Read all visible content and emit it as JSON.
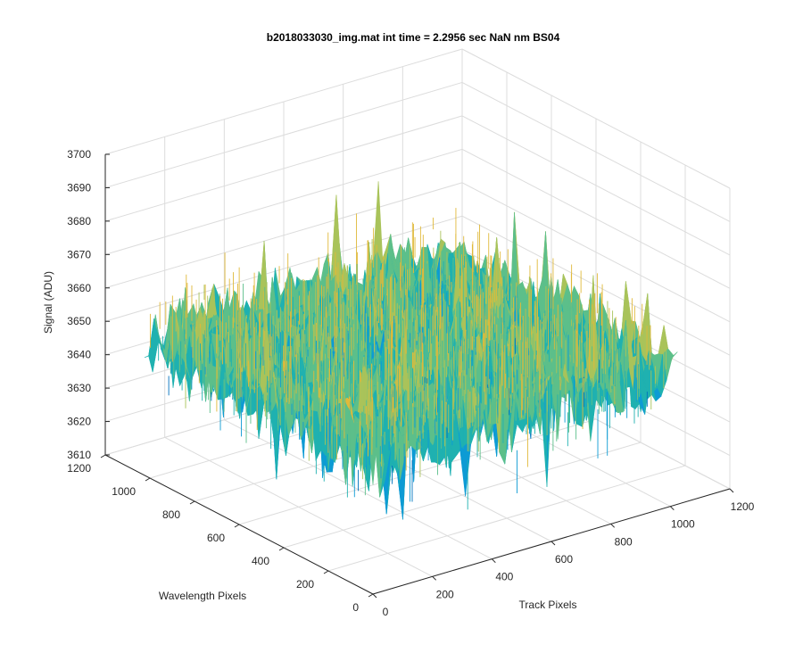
{
  "window": {
    "title": "b2018033030_img.mat int time = 2.2956 sec  NaN nm BS04"
  },
  "chart_data": {
    "type": "surface",
    "title": "b2018033030_img.mat int time = 2.2956 sec  NaN nm BS04",
    "xlabel": "Track Pixels",
    "ylabel": "Wavelength Pixels",
    "zlabel": "Signal (ADU)",
    "xlim": [
      0,
      1200
    ],
    "ylim": [
      0,
      1200
    ],
    "zlim": [
      3610,
      3700
    ],
    "xticks": [
      "0",
      "200",
      "400",
      "600",
      "800",
      "1000",
      "1200"
    ],
    "yticks": [
      "0",
      "200",
      "400",
      "600",
      "800",
      "1000",
      "1200"
    ],
    "zticks": [
      "3610",
      "3620",
      "3630",
      "3640",
      "3650",
      "3660",
      "3670",
      "3680",
      "3690",
      "3700"
    ],
    "data_extent": {
      "x": [
        0,
        1024
      ],
      "y": [
        0,
        1024
      ]
    },
    "signal_mean": 3650,
    "signal_min_approx": 3622,
    "signal_max_approx": 3680,
    "grid": true,
    "legend": "none",
    "colormap": [
      "#0072bd",
      "#0d9bd4",
      "#1fb1b0",
      "#5cbf8a",
      "#a9c35a",
      "#e0b93a"
    ]
  }
}
